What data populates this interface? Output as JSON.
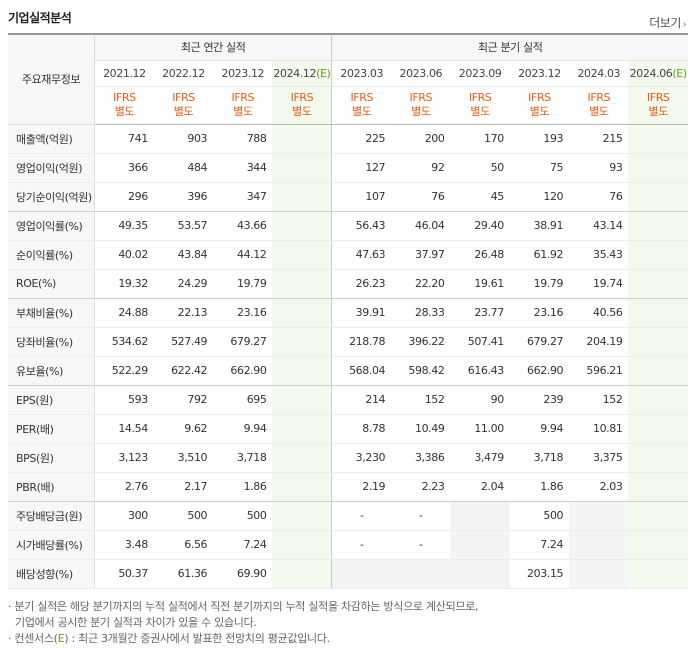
{
  "header": {
    "title": "기업실적분석",
    "more_label": "더보기"
  },
  "table": {
    "corner_label": "주요재무정보",
    "group_annual": "최근 연간 실적",
    "group_quarter": "최근 분기 실적",
    "annual_periods": [
      {
        "label": "2021.12",
        "est": ""
      },
      {
        "label": "2022.12",
        "est": ""
      },
      {
        "label": "2023.12",
        "est": ""
      },
      {
        "label": "2024.12",
        "est": "(E)"
      }
    ],
    "quarter_periods": [
      {
        "label": "2023.03",
        "est": ""
      },
      {
        "label": "2023.06",
        "est": ""
      },
      {
        "label": "2023.09",
        "est": ""
      },
      {
        "label": "2023.12",
        "est": ""
      },
      {
        "label": "2024.03",
        "est": ""
      },
      {
        "label": "2024.06",
        "est": "(E)"
      }
    ],
    "basis_line1": "IFRS",
    "basis_line2": "별도",
    "rows": [
      {
        "label": "매출액(억원)",
        "annual": [
          "741",
          "903",
          "788",
          ""
        ],
        "quarter": [
          "225",
          "200",
          "170",
          "193",
          "215",
          ""
        ]
      },
      {
        "label": "영업이익(억원)",
        "annual": [
          "366",
          "484",
          "344",
          ""
        ],
        "quarter": [
          "127",
          "92",
          "50",
          "75",
          "93",
          ""
        ]
      },
      {
        "label": "당기순이익(억원)",
        "annual": [
          "296",
          "396",
          "347",
          ""
        ],
        "quarter": [
          "107",
          "76",
          "45",
          "120",
          "76",
          ""
        ]
      },
      {
        "label": "영업이익률(%)",
        "annual": [
          "49.35",
          "53.57",
          "43.66",
          ""
        ],
        "quarter": [
          "56.43",
          "46.04",
          "29.40",
          "38.91",
          "43.14",
          ""
        ]
      },
      {
        "label": "순이익률(%)",
        "annual": [
          "40.02",
          "43.84",
          "44.12",
          ""
        ],
        "quarter": [
          "47.63",
          "37.97",
          "26.48",
          "61.92",
          "35.43",
          ""
        ]
      },
      {
        "label": "ROE(%)",
        "annual": [
          "19.32",
          "24.29",
          "19.79",
          ""
        ],
        "quarter": [
          "26.23",
          "22.20",
          "19.61",
          "19.79",
          "19.74",
          ""
        ]
      },
      {
        "label": "부채비율(%)",
        "annual": [
          "24.88",
          "22.13",
          "23.16",
          ""
        ],
        "quarter": [
          "39.91",
          "28.33",
          "23.77",
          "23.16",
          "40.56",
          ""
        ]
      },
      {
        "label": "당좌비율(%)",
        "annual": [
          "534.62",
          "527.49",
          "679.27",
          ""
        ],
        "quarter": [
          "218.78",
          "396.22",
          "507.41",
          "679.27",
          "204.19",
          ""
        ]
      },
      {
        "label": "유보율(%)",
        "annual": [
          "522.29",
          "622.42",
          "662.90",
          ""
        ],
        "quarter": [
          "568.04",
          "598.42",
          "616.43",
          "662.90",
          "596.21",
          ""
        ]
      },
      {
        "label": "EPS(원)",
        "annual": [
          "593",
          "792",
          "695",
          ""
        ],
        "quarter": [
          "214",
          "152",
          "90",
          "239",
          "152",
          ""
        ]
      },
      {
        "label": "PER(배)",
        "annual": [
          "14.54",
          "9.62",
          "9.94",
          ""
        ],
        "quarter": [
          "8.78",
          "10.49",
          "11.00",
          "9.94",
          "10.81",
          ""
        ]
      },
      {
        "label": "BPS(원)",
        "annual": [
          "3,123",
          "3,510",
          "3,718",
          ""
        ],
        "quarter": [
          "3,230",
          "3,386",
          "3,479",
          "3,718",
          "3,375",
          ""
        ]
      },
      {
        "label": "PBR(배)",
        "annual": [
          "2.76",
          "2.17",
          "1.86",
          ""
        ],
        "quarter": [
          "2.19",
          "2.23",
          "2.04",
          "1.86",
          "2.03",
          ""
        ]
      },
      {
        "label": "주당배당금(원)",
        "annual": [
          "300",
          "500",
          "500",
          ""
        ],
        "quarter": [
          "-",
          "-",
          "",
          "500",
          "",
          ""
        ]
      },
      {
        "label": "시가배당률(%)",
        "annual": [
          "3.48",
          "6.56",
          "7.24",
          ""
        ],
        "quarter": [
          "-",
          "-",
          "",
          "7.24",
          "",
          ""
        ]
      },
      {
        "label": "배당성향(%)",
        "annual": [
          "50.37",
          "61.36",
          "69.90",
          ""
        ],
        "quarter": [
          "",
          "",
          "",
          "203.15",
          "",
          ""
        ]
      }
    ]
  },
  "notes": {
    "line1": "분기 실적은 해당 분기까지의 누적 실적에서 직전 분기까지의 누적 실적을 차감하는 방식으로 계산되므로,",
    "line2": "기업에서 공시한 분기 실적과 차이가 있을 수 있습니다.",
    "line3_prefix": "컨센서스(",
    "line3_e": "E",
    "line3_suffix": ") : 최근 3개월간 증권사에서 발표한 전망치의 평균값입니다."
  },
  "colors": {
    "ifrs_orange": "#e75b17",
    "estimate_green": "#63a01e",
    "estimate_bg": "#f4f9ee"
  }
}
